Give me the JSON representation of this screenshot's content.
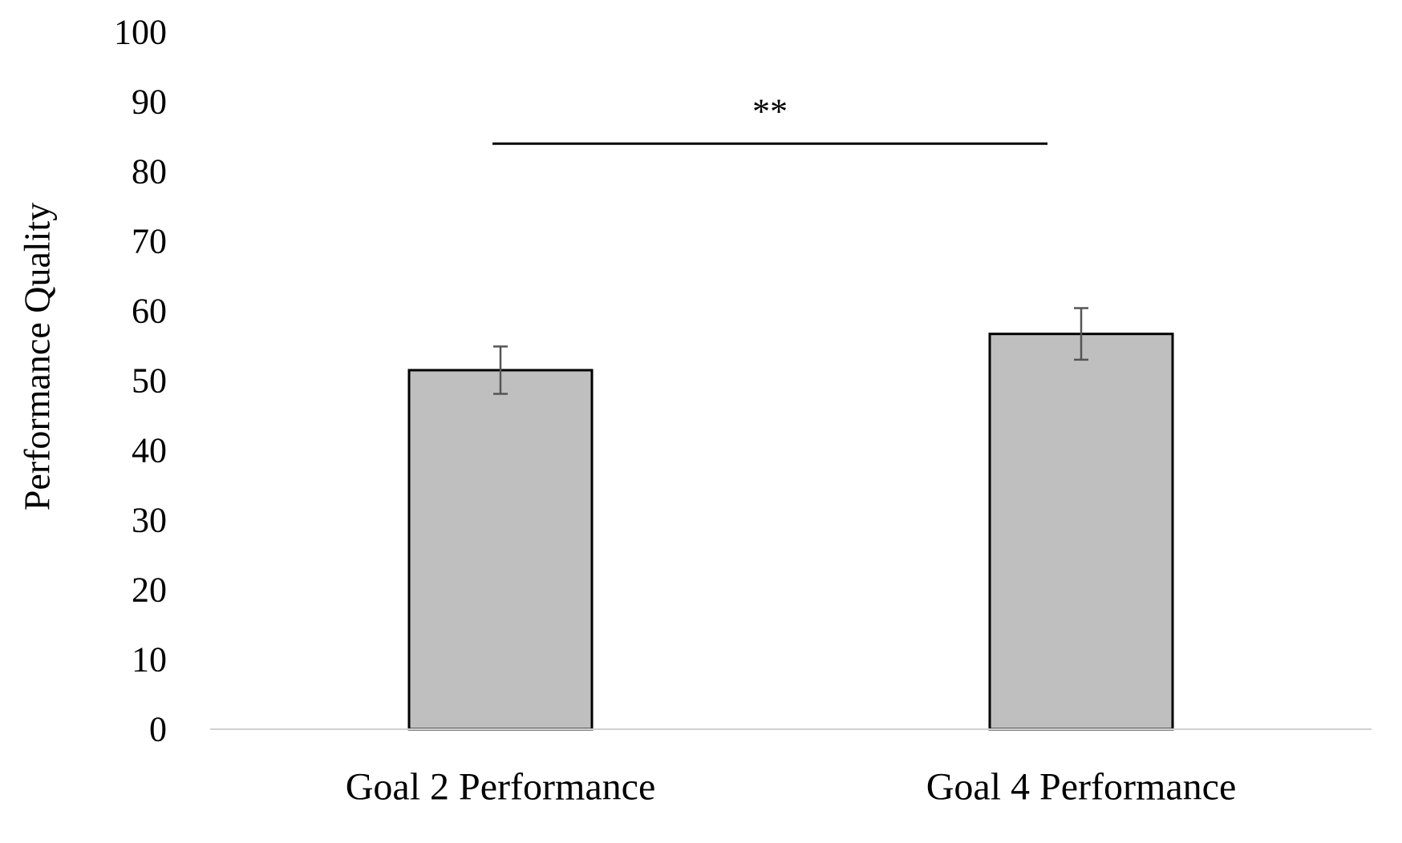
{
  "chart_data": {
    "type": "bar",
    "ylabel": "Performance Quality",
    "xlabel": "",
    "ylim": [
      0,
      100
    ],
    "yticks": [
      0,
      10,
      20,
      30,
      40,
      50,
      60,
      70,
      80,
      90,
      100
    ],
    "grid": false,
    "legend": "none",
    "categories": [
      "Goal 2 Performance",
      "Goal 4 Performance"
    ],
    "values": [
      51.5,
      56.7
    ],
    "error_bars": [
      3.4,
      3.7
    ],
    "annotations": [
      {
        "text": "**",
        "type": "significance-bracket",
        "from": "Goal 2 Performance",
        "to": "Goal 4 Performance",
        "y": 84
      }
    ],
    "colors": {
      "bar_fill": "#bfbfbf",
      "bar_stroke": "#000000",
      "axis": "#d0d0d0",
      "error_bar": "#555555"
    }
  }
}
